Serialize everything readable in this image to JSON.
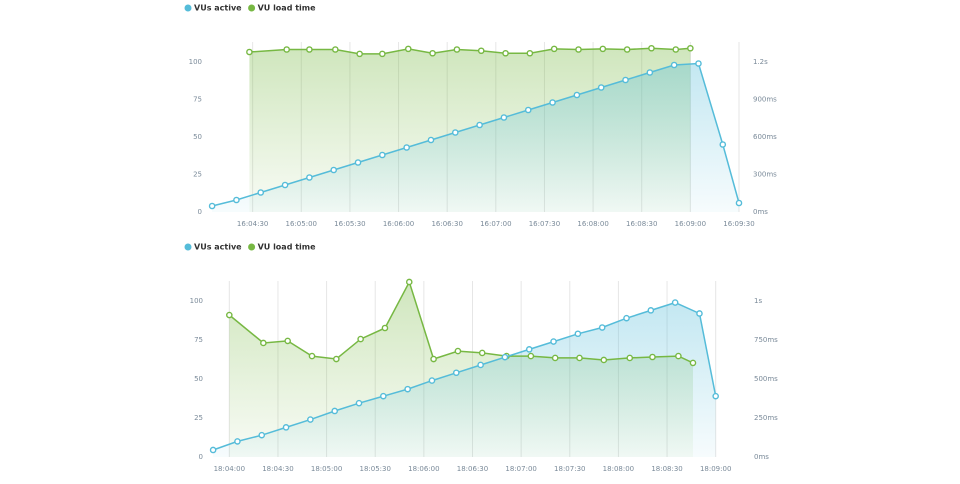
{
  "chart_data": [
    {
      "type": "line",
      "series": [
        {
          "name": "VUs active",
          "color": "#55bcd9",
          "x": [
            "16:04:05",
            "16:04:20",
            "16:04:35",
            "16:04:50",
            "16:05:05",
            "16:05:20",
            "16:05:35",
            "16:05:50",
            "16:06:05",
            "16:06:20",
            "16:06:35",
            "16:06:50",
            "16:07:05",
            "16:07:20",
            "16:07:35",
            "16:07:50",
            "16:08:05",
            "16:08:20",
            "16:08:35",
            "16:08:50",
            "16:09:05",
            "16:09:20",
            "16:09:30"
          ],
          "values": [
            4,
            8,
            13,
            18,
            23,
            28,
            33,
            38,
            43,
            48,
            53,
            58,
            63,
            68,
            73,
            78,
            83,
            88,
            93,
            98,
            99,
            45,
            6
          ]
        },
        {
          "name": "VU load time",
          "color": "#77b843",
          "axis": "y2",
          "x": [
            "16:04:28",
            "16:04:51",
            "16:05:05",
            "16:05:21",
            "16:05:36",
            "16:05:50",
            "16:06:06",
            "16:06:21",
            "16:06:36",
            "16:06:51",
            "16:07:06",
            "16:07:21",
            "16:07:36",
            "16:07:51",
            "16:08:06",
            "16:08:21",
            "16:08:36",
            "16:08:51",
            "16:09:00"
          ],
          "values": [
            1280,
            1300,
            1300,
            1300,
            1265,
            1265,
            1305,
            1270,
            1300,
            1290,
            1270,
            1270,
            1305,
            1300,
            1305,
            1300,
            1310,
            1300,
            1310
          ]
        }
      ],
      "xlim": [
        "16:04:00",
        "16:09:30"
      ],
      "xticks": [
        "16:04:30",
        "16:05:00",
        "16:05:30",
        "16:06:00",
        "16:06:30",
        "16:07:00",
        "16:07:30",
        "16:08:00",
        "16:08:30",
        "16:09:00",
        "16:09:30"
      ],
      "ylim": [
        0,
        100
      ],
      "yticks": [
        0,
        25,
        50,
        75,
        100
      ],
      "y2lim": [
        0,
        1200
      ],
      "y2ticks": [
        {
          "value": 0,
          "label": "0ms"
        },
        {
          "value": 300,
          "label": "300ms"
        },
        {
          "value": 600,
          "label": "600ms"
        },
        {
          "value": 900,
          "label": "900ms"
        },
        {
          "value": 1200,
          "label": "1.2s"
        }
      ],
      "grid": "x",
      "legend": "top-left"
    },
    {
      "type": "line",
      "series": [
        {
          "name": "VUs active",
          "color": "#55bcd9",
          "x": [
            "18:03:50",
            "18:04:05",
            "18:04:20",
            "18:04:35",
            "18:04:50",
            "18:05:05",
            "18:05:20",
            "18:05:35",
            "18:05:50",
            "18:06:05",
            "18:06:20",
            "18:06:35",
            "18:06:50",
            "18:07:05",
            "18:07:20",
            "18:07:35",
            "18:07:50",
            "18:08:05",
            "18:08:20",
            "18:08:35",
            "18:08:50",
            "18:09:00"
          ],
          "values": [
            4.5,
            10,
            14,
            19,
            24,
            29.5,
            34.5,
            39,
            43.5,
            49,
            54,
            59,
            64,
            69,
            74,
            79,
            83,
            89,
            94,
            99,
            92,
            39
          ]
        },
        {
          "name": "VU load time",
          "color": "#77b843",
          "axis": "y2",
          "x": [
            "18:04:00",
            "18:04:21",
            "18:04:36",
            "18:04:51",
            "18:05:06",
            "18:05:21",
            "18:05:36",
            "18:05:51",
            "18:06:06",
            "18:06:21",
            "18:06:36",
            "18:06:51",
            "18:07:06",
            "18:07:21",
            "18:07:36",
            "18:07:51",
            "18:08:07",
            "18:08:21",
            "18:08:37",
            "18:08:46"
          ],
          "values": [
            910,
            731,
            744,
            647,
            628,
            756,
            827,
            1122,
            628,
            679,
            667,
            647,
            647,
            635,
            635,
            622,
            635,
            641,
            647,
            603
          ]
        }
      ],
      "xlim": [
        "18:03:45",
        "18:09:15"
      ],
      "xticks": [
        "18:04:00",
        "18:04:30",
        "18:05:00",
        "18:05:30",
        "18:06:00",
        "18:06:30",
        "18:07:00",
        "18:07:30",
        "18:08:00",
        "18:08:30",
        "18:09:00"
      ],
      "ylim": [
        0,
        100
      ],
      "yticks": [
        0,
        25,
        50,
        75,
        100
      ],
      "y2lim": [
        0,
        1000
      ],
      "y2ticks": [
        {
          "value": 0,
          "label": "0ms"
        },
        {
          "value": 250,
          "label": "250ms"
        },
        {
          "value": 500,
          "label": "500ms"
        },
        {
          "value": 750,
          "label": "750ms"
        },
        {
          "value": 1000,
          "label": "1s"
        }
      ],
      "grid": "x",
      "legend": "top-left"
    }
  ]
}
